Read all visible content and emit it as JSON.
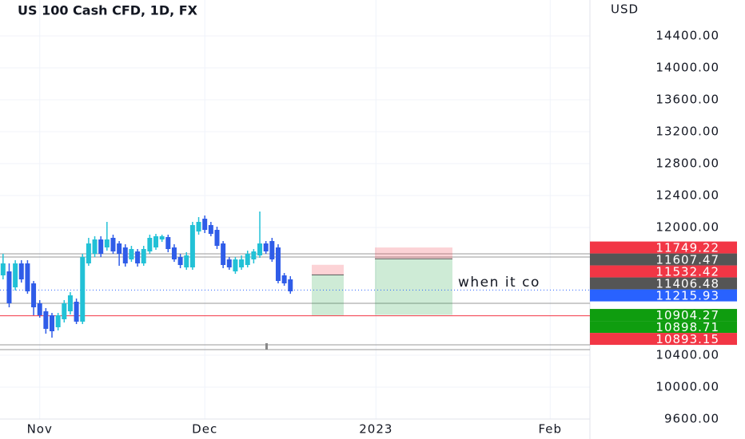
{
  "chart_data": {
    "type": "candlestick",
    "title": "US 100 Cash CFD, 1D, FX",
    "y_axis_label": "USD",
    "ylim": [
      9600,
      14850
    ],
    "yticks": [
      {
        "value": 9600,
        "label": "9600.00"
      },
      {
        "value": 10000,
        "label": "10000.00"
      },
      {
        "value": 10400,
        "label": "10400.00"
      },
      {
        "value": 12000,
        "label": "12000.00"
      },
      {
        "value": 12400,
        "label": "12400.00"
      },
      {
        "value": 12800,
        "label": "12800.00"
      },
      {
        "value": 13200,
        "label": "13200.00"
      },
      {
        "value": 13600,
        "label": "13600.00"
      },
      {
        "value": 14000,
        "label": "14000.00"
      },
      {
        "value": 14400,
        "label": "14400.00"
      }
    ],
    "xlim": [
      -0.5,
      96
    ],
    "xticks": [
      {
        "value": 6,
        "label": "Nov"
      },
      {
        "value": 33,
        "label": "Dec"
      },
      {
        "value": 61,
        "label": "2023"
      },
      {
        "value": 89.5,
        "label": "Feb"
      }
    ],
    "up_color": "#22c1d6",
    "down_color": "#2f5ce8",
    "open": [
      11400,
      11450,
      11250,
      11550,
      11550,
      11300,
      11050,
      10950,
      10900,
      10750,
      10850,
      10950,
      11070,
      10820,
      11550,
      11670,
      11850,
      11750,
      11870,
      11800,
      11750,
      11600,
      11700,
      11550,
      11700,
      11750,
      11850,
      11880,
      11750,
      11630,
      11500,
      11500,
      11950,
      12110,
      12030,
      11970,
      11800,
      11600,
      11450,
      11500,
      11530,
      11600,
      11650,
      11800,
      11830,
      11750,
      11400,
      11350
    ],
    "high": [
      11670,
      11550,
      11590,
      11590,
      11590,
      11330,
      11090,
      10990,
      10930,
      10930,
      11090,
      11190,
      11110,
      11670,
      11870,
      11890,
      11890,
      12070,
      11910,
      11830,
      11790,
      11770,
      11730,
      11770,
      11910,
      11920,
      11910,
      11910,
      11790,
      11670,
      11690,
      12070,
      12130,
      12150,
      12070,
      12010,
      11830,
      11630,
      11630,
      11650,
      11710,
      11730,
      12200,
      11830,
      11870,
      11790,
      11430,
      11390
    ],
    "low": [
      11350,
      11000,
      11210,
      11310,
      11170,
      10900,
      10870,
      10670,
      10620,
      10710,
      10810,
      10910,
      10790,
      10790,
      11520,
      11630,
      11630,
      11710,
      11670,
      11520,
      11510,
      11570,
      11510,
      11520,
      11670,
      11720,
      11820,
      11690,
      11570,
      11490,
      11470,
      11470,
      11910,
      11930,
      11890,
      11730,
      11490,
      11470,
      11420,
      11470,
      11500,
      11550,
      11620,
      11670,
      11570,
      11300,
      11270,
      11170
    ],
    "close": [
      11550,
      11050,
      11550,
      11350,
      11200,
      11000,
      10900,
      10730,
      10700,
      10900,
      11050,
      11150,
      10820,
      11630,
      11800,
      11850,
      11670,
      11850,
      11700,
      11670,
      11550,
      11730,
      11550,
      11730,
      11870,
      11890,
      11890,
      11730,
      11600,
      11530,
      11650,
      12030,
      12070,
      11970,
      11920,
      11770,
      11530,
      11500,
      11600,
      11600,
      11670,
      11700,
      11800,
      11700,
      11600,
      11330,
      11300,
      11200
    ],
    "positions": [
      {
        "stop": 11532.42,
        "entry": 11406.48,
        "target": 10898.71
      },
      {
        "stop": 11749.22,
        "entry": 11607.47,
        "target": 10904.27
      }
    ],
    "alert_line": 10893.15,
    "last_price": 11215.93,
    "annotation": "when it co"
  }
}
